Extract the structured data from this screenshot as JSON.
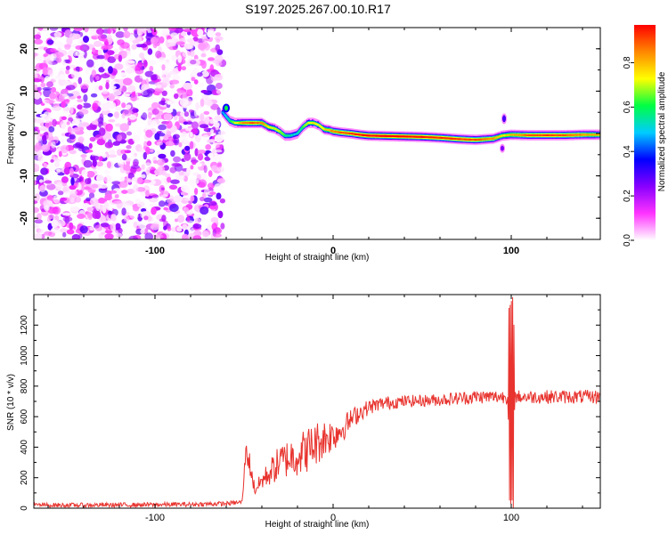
{
  "title": "S197.2025.267.00.10.R17",
  "chart_data": [
    {
      "type": "heatmap",
      "name": "spectrogram",
      "xlabel": "Height of straight line (km)",
      "ylabel": "Frequency (Hz)",
      "xlim": [
        -168,
        150
      ],
      "ylim": [
        -25,
        25
      ],
      "x_ticks": [
        "-100",
        "0",
        "100"
      ],
      "y_ticks": [
        "20",
        "10",
        "0",
        "-10",
        "-20"
      ],
      "x_tick_values": [
        -100,
        0,
        100
      ],
      "y_tick_values": [
        20,
        10,
        0,
        -10,
        -20
      ],
      "noise_region_x": [
        -168,
        -62
      ],
      "ridge": {
        "x": [
          -62,
          -58,
          -55,
          -50,
          -45,
          -40,
          -36,
          -33,
          -30,
          -27,
          -24,
          -20,
          -17,
          -14,
          -11,
          -8,
          -5,
          -2,
          0,
          5,
          10,
          15,
          20,
          30,
          40,
          50,
          60,
          70,
          80,
          90,
          95,
          100,
          110,
          120,
          130,
          140,
          150
        ],
        "freq": [
          5,
          3,
          2.5,
          2.5,
          2.5,
          2.5,
          1.5,
          1.2,
          0.5,
          -0.5,
          -0.5,
          0,
          1.5,
          2.5,
          2.5,
          2,
          1,
          0.8,
          0.5,
          0.2,
          0,
          -0.3,
          -0.5,
          -0.6,
          -0.7,
          -0.8,
          -1,
          -1.3,
          -1.5,
          -1.2,
          -0.5,
          -0.3,
          -0.4,
          -0.4,
          -0.4,
          -0.3,
          -0.3
        ],
        "amplitude": [
          0.45,
          0.55,
          0.7,
          0.85,
          0.9,
          0.85,
          0.75,
          0.7,
          0.7,
          0.6,
          0.55,
          0.5,
          0.6,
          0.7,
          0.75,
          0.7,
          0.75,
          0.8,
          0.85,
          0.9,
          0.92,
          0.95,
          0.97,
          0.98,
          0.97,
          0.95,
          0.93,
          0.92,
          0.9,
          0.85,
          0.75,
          0.8,
          0.9,
          0.92,
          0.9,
          0.85,
          0.8
        ]
      },
      "spike_x": 96,
      "colorbar": {
        "label": "Normalized spectral amplitude",
        "range": [
          0,
          0.97
        ],
        "ticks": [
          "0.0",
          "0.2",
          "0.4",
          "0.6",
          "0.8"
        ],
        "tick_values": [
          0,
          0.2,
          0.4,
          0.6,
          0.8
        ],
        "colormap": [
          "#ffffff",
          "#ff33ff",
          "#8800ff",
          "#0000ff",
          "#00ccff",
          "#00ff44",
          "#ffff00",
          "#ff8800",
          "#ff0000"
        ]
      }
    },
    {
      "type": "line",
      "name": "snr",
      "xlabel": "Height of straight line (km)",
      "ylabel": "SNR (10 * v/v)",
      "xlim": [
        -168,
        150
      ],
      "ylim": [
        0,
        1400
      ],
      "x_ticks": [
        "-100",
        "0",
        "100"
      ],
      "y_ticks": [
        "1200",
        "1000",
        "800",
        "600",
        "400",
        "200",
        "0"
      ],
      "x_tick_values": [
        -100,
        0,
        100
      ],
      "y_tick_values": [
        1200,
        1000,
        800,
        600,
        400,
        200,
        0
      ],
      "color": "#e8332e",
      "series": [
        {
          "name": "SNR",
          "x": [
            -168,
            -140,
            -110,
            -80,
            -60,
            -51,
            -49,
            -47,
            -44,
            -40,
            -35,
            -30,
            -25,
            -20,
            -15,
            -10,
            -5,
            0,
            5,
            10,
            15,
            20,
            25,
            30,
            40,
            50,
            60,
            70,
            80,
            90,
            98,
            100,
            102,
            110,
            120,
            130,
            140,
            150
          ],
          "y": [
            20,
            20,
            22,
            25,
            30,
            40,
            380,
            300,
            120,
            180,
            240,
            300,
            330,
            350,
            380,
            420,
            460,
            480,
            520,
            580,
            630,
            660,
            680,
            690,
            700,
            705,
            710,
            720,
            730,
            730,
            730,
            80,
            730,
            730,
            730,
            730,
            730,
            730
          ],
          "noise_amplitude": [
            15,
            15,
            15,
            15,
            15,
            15,
            60,
            80,
            40,
            60,
            90,
            120,
            130,
            140,
            150,
            150,
            130,
            110,
            90,
            70,
            60,
            50,
            45,
            45,
            40,
            40,
            40,
            45,
            45,
            45,
            45,
            0,
            45,
            45,
            45,
            45,
            45,
            45
          ],
          "spike": {
            "x": 100,
            "max": 1400,
            "min": 0
          }
        }
      ]
    }
  ]
}
